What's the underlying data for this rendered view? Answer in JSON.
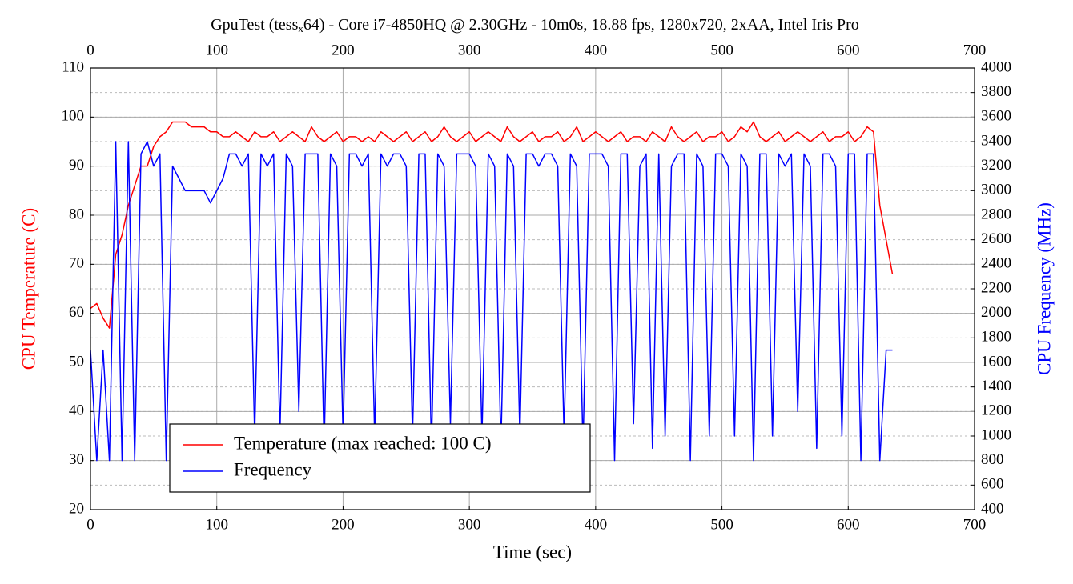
{
  "chart_data": {
    "type": "line",
    "title": [
      "GpuTest (tess",
      "x",
      "64) - Core i7-4850HQ @ 2.30GHz - 10m0s, 18.88 fps, 1280x720, 2xAA, Intel Iris Pro"
    ],
    "xlabel": "Time (sec)",
    "ylabel": "CPU Temperature (C)",
    "y2label": "CPU Frequency (MHz)",
    "xlim": [
      0,
      700
    ],
    "xticks": [
      0,
      100,
      200,
      300,
      400,
      500,
      600,
      700
    ],
    "ylim": [
      20,
      110
    ],
    "yticks": [
      20,
      30,
      40,
      50,
      60,
      70,
      80,
      90,
      100,
      110
    ],
    "y2lim": [
      400,
      4000
    ],
    "y2ticks": [
      400,
      600,
      800,
      1000,
      1200,
      1400,
      1600,
      1800,
      2000,
      2200,
      2400,
      2600,
      2800,
      3000,
      3200,
      3400,
      3600,
      3800,
      4000
    ],
    "grid": true,
    "legend": "lower left",
    "x": [
      0,
      5,
      10,
      15,
      20,
      25,
      30,
      35,
      40,
      45,
      50,
      55,
      60,
      65,
      70,
      75,
      80,
      85,
      90,
      95,
      100,
      105,
      110,
      115,
      120,
      125,
      130,
      135,
      140,
      145,
      150,
      155,
      160,
      165,
      170,
      175,
      180,
      185,
      190,
      195,
      200,
      205,
      210,
      215,
      220,
      225,
      230,
      235,
      240,
      245,
      250,
      255,
      260,
      265,
      270,
      275,
      280,
      285,
      290,
      295,
      300,
      305,
      310,
      315,
      320,
      325,
      330,
      335,
      340,
      345,
      350,
      355,
      360,
      365,
      370,
      375,
      380,
      385,
      390,
      395,
      400,
      405,
      410,
      415,
      420,
      425,
      430,
      435,
      440,
      445,
      450,
      455,
      460,
      465,
      470,
      475,
      480,
      485,
      490,
      495,
      500,
      505,
      510,
      515,
      520,
      525,
      530,
      535,
      540,
      545,
      550,
      555,
      560,
      565,
      570,
      575,
      580,
      585,
      590,
      595,
      600,
      605,
      610,
      615,
      620,
      625,
      630,
      635
    ],
    "series": [
      {
        "name": "Temperature (max reached: 100 C)",
        "color": "#ff0000",
        "axis": "y",
        "values": [
          61,
          62,
          59,
          57,
          72,
          76,
          82,
          86,
          90,
          90,
          94,
          96,
          97,
          99,
          99,
          99,
          98,
          98,
          98,
          97,
          97,
          96,
          96,
          97,
          96,
          95,
          97,
          96,
          96,
          97,
          95,
          96,
          97,
          96,
          95,
          98,
          96,
          95,
          96,
          97,
          95,
          96,
          96,
          95,
          96,
          95,
          97,
          96,
          95,
          96,
          97,
          95,
          96,
          97,
          95,
          96,
          98,
          96,
          95,
          96,
          97,
          95,
          96,
          97,
          96,
          95,
          98,
          96,
          95,
          96,
          97,
          95,
          96,
          96,
          97,
          95,
          96,
          98,
          95,
          96,
          97,
          96,
          95,
          96,
          97,
          95,
          96,
          96,
          95,
          97,
          96,
          95,
          98,
          96,
          95,
          96,
          97,
          95,
          96,
          96,
          97,
          95,
          96,
          98,
          97,
          99,
          96,
          95,
          96,
          97,
          95,
          96,
          97,
          96,
          95,
          96,
          97,
          95,
          96,
          96,
          97,
          95,
          96,
          98,
          97,
          82,
          75,
          68
        ]
      },
      {
        "name": "Frequency",
        "color": "#0000ff",
        "axis": "y2",
        "values": [
          1700,
          800,
          1700,
          800,
          3400,
          800,
          3400,
          800,
          3300,
          3400,
          3200,
          3300,
          800,
          3200,
          3100,
          3000,
          3000,
          3000,
          3000,
          2900,
          3000,
          3100,
          3300,
          3300,
          3200,
          3300,
          1000,
          3300,
          3200,
          3300,
          1000,
          3300,
          3200,
          1200,
          3300,
          3300,
          3300,
          900,
          3300,
          3200,
          1000,
          3300,
          3300,
          3200,
          3300,
          1000,
          3300,
          3200,
          3300,
          3300,
          3200,
          1000,
          3300,
          3300,
          900,
          3300,
          3200,
          1100,
          3300,
          3300,
          3300,
          3200,
          1000,
          3300,
          3200,
          900,
          3300,
          3200,
          1000,
          3300,
          3300,
          3200,
          3300,
          3300,
          3200,
          1000,
          3300,
          3200,
          900,
          3300,
          3300,
          3300,
          3200,
          800,
          3300,
          3300,
          1100,
          3200,
          3300,
          900,
          3300,
          1000,
          3200,
          3300,
          3300,
          800,
          3300,
          3200,
          1000,
          3300,
          3300,
          3200,
          1000,
          3300,
          3200,
          800,
          3300,
          3300,
          1000,
          3300,
          3200,
          3300,
          1200,
          3300,
          3200,
          900,
          3300,
          3300,
          3200,
          1000,
          3300,
          3300,
          800,
          3300,
          3300,
          800,
          1700,
          1700
        ]
      }
    ]
  }
}
